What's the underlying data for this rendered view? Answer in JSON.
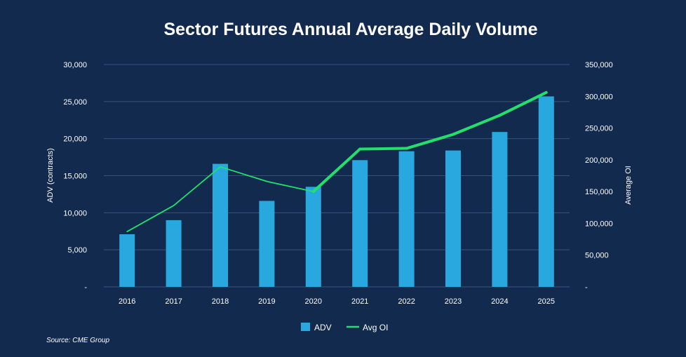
{
  "chart_data": {
    "type": "bar",
    "title": "Sector Futures Annual Average Daily Volume",
    "categories": [
      "2016",
      "2017",
      "2018",
      "2019",
      "2020",
      "2021",
      "2022",
      "2023",
      "2024",
      "2025"
    ],
    "series": [
      {
        "name": "ADV",
        "type": "bar",
        "axis": "left",
        "color": "#29a8e0",
        "values": [
          7100,
          9000,
          16600,
          11600,
          13500,
          17100,
          18300,
          18400,
          20900,
          25700
        ]
      },
      {
        "name": "Avg OI",
        "type": "line",
        "axis": "right",
        "color": "#22e06b",
        "values": [
          87000,
          128000,
          189000,
          166000,
          150000,
          217000,
          218000,
          240000,
          270000,
          306000
        ]
      }
    ],
    "ylabel": "ADV (contracts)",
    "y2label": "Average OI",
    "ylim": [
      0,
      30000
    ],
    "y2lim": [
      0,
      350000
    ],
    "yticks": [
      "-",
      "5,000",
      "10,000",
      "15,000",
      "20,000",
      "25,000",
      "30,000"
    ],
    "y2ticks": [
      "-",
      "50,000",
      "100,000",
      "150,000",
      "200,000",
      "250,000",
      "300,000",
      "350,000"
    ],
    "legend": {
      "position": "bottom",
      "labels": [
        "ADV",
        "Avg OI"
      ]
    },
    "grid": true
  },
  "source": "Source: CME Group",
  "colors": {
    "background": "#132a4f",
    "grid": "#3a5478",
    "text": "#ffffff"
  }
}
